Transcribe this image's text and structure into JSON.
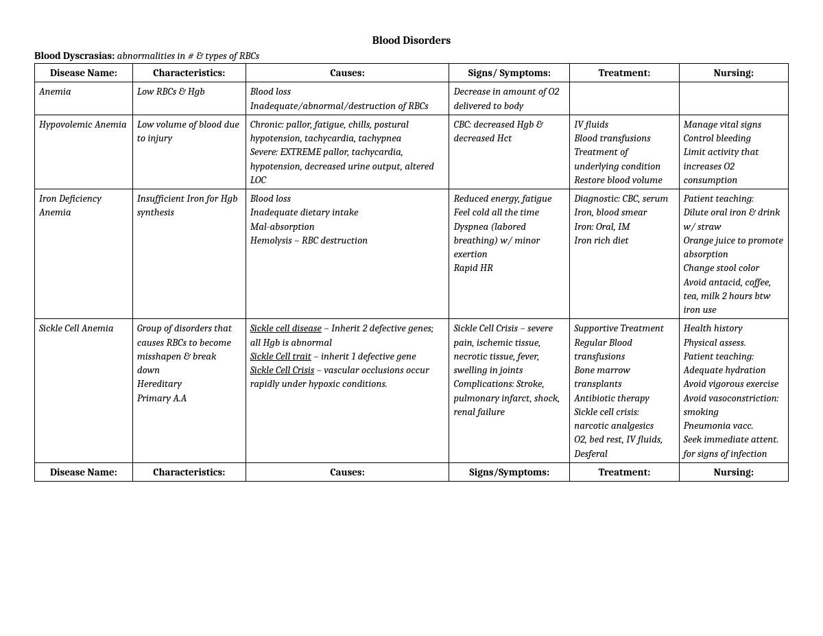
{
  "title": "Blood Disorders",
  "subheading_bold": "Blood Dyscrasias:",
  "subheading_ital": " abnormalities in # & types of RBCs",
  "columns": [
    "Disease Name:",
    "Characteristics:",
    "Causes:",
    "Signs/ Symptoms:",
    "Treatment:",
    "Nursing:"
  ],
  "footer_columns": [
    "Disease Name:",
    "Characteristics:",
    "Causes:",
    "Signs/Symptoms:",
    "Treatment:",
    "Nursing:"
  ],
  "rows": {
    "anemia": {
      "disease": "Anemia",
      "char": "Low RBCs & Hgb",
      "causes_l1": "Blood loss",
      "causes_l2": "Inadequate/abnormal/destruction of RBCs",
      "signs": "Decrease in amount of O2 delivered to body",
      "treat": "",
      "nursing": ""
    },
    "hypo": {
      "disease": "Hypovolemic Anemia",
      "char": "Low volume of blood due to injury",
      "causes_l1": "Chronic: pallor, fatigue, chills, postural hypotension, tachycardia, tachypnea",
      "causes_l2": "Severe: EXTREME pallor, tachycardia, hypotension, decreased urine output, altered LOC",
      "signs": "CBC: decreased Hgb & decreased Hct",
      "treat_l1": "IV fluids",
      "treat_l2": "Blood transfusions",
      "treat_l3": "Treatment of underlying condition",
      "treat_l4": "Restore blood volume",
      "nursing_l1": "Manage vital signs",
      "nursing_l2": "Control bleeding",
      "nursing_l3": "Limit activity that increases O2 consumption"
    },
    "iron": {
      "disease": "Iron Deficiency Anemia",
      "char": "Insufficient Iron for Hgb synthesis",
      "causes_l1": "Blood loss",
      "causes_l2": "Inadequate dietary intake",
      "causes_l3": "Mal-absorption",
      "causes_l4": "Hemolysis – RBC destruction",
      "signs_l1": "Reduced energy, fatigue",
      "signs_l2": "Feel cold all the time",
      "signs_l3": "Dyspnea (labored breathing) w/ minor exertion",
      "signs_l4": "Rapid HR",
      "treat_l1": "Diagnostic: CBC, serum Iron, blood smear",
      "treat_l2": "Iron: Oral, IM",
      "treat_l3": "Iron rich diet",
      "nursing_l1": "Patient teaching:",
      "nursing_l2": "Dilute oral iron & drink w/ straw",
      "nursing_l3": "Orange juice to promote absorption",
      "nursing_l4": "Change stool color",
      "nursing_l5": "Avoid antacid, coffee, tea, milk 2 hours btw iron use"
    },
    "sickle": {
      "disease": "Sickle Cell Anemia",
      "char_l1": "Group of disorders that causes RBCs to become misshapen & break down",
      "char_l2": "Hereditary",
      "char_l3": "Primary A.A",
      "causes_u1": "Sickle cell disease",
      "causes_t1": " – Inherit 2 defective genes; all Hgb is abnormal",
      "causes_u2": "Sickle Cell trait",
      "causes_t2": " – inherit 1 defective gene",
      "causes_u3": "Sickle Cell Crisis",
      "causes_t3": " – vascular occlusions occur rapidly under hypoxic conditions.",
      "signs_l1": "Sickle Cell Crisis – severe pain, ischemic tissue, necrotic tissue, fever, swelling in joints",
      "signs_l2": "Complications: Stroke, pulmonary infarct, shock, renal failure",
      "treat_l1": "Supportive Treatment",
      "treat_l2": "Regular Blood transfusions",
      "treat_l3": "Bone marrow transplants",
      "treat_l4": "Antibiotic therapy",
      "treat_l5": "Sickle cell crisis: narcotic analgesics",
      "treat_l6": "O2, bed rest, IV fluids, Desferal",
      "nursing_l1": "Health history",
      "nursing_l2": "Physical assess.",
      "nursing_l3": "Patient teaching:",
      "nursing_l4": "Adequate hydration",
      "nursing_l5": "Avoid vigorous exercise",
      "nursing_l6": "Avoid vasoconstriction: smoking",
      "nursing_l7": "Pneumonia vacc.",
      "nursing_l8": "Seek immediate attent. for signs of infection"
    }
  },
  "style": {
    "type": "table",
    "background_color": "#ffffff",
    "text_color": "#000000",
    "border_color": "#000000",
    "font_family": "Cambria/Georgia serif",
    "header_font_weight": "bold",
    "body_font_style": "italic",
    "title_fontsize": 16,
    "body_fontsize": 15,
    "column_widths_pct": [
      13,
      15,
      27,
      16,
      14.5,
      14.5
    ],
    "column_align": [
      "left",
      "left",
      "left",
      "left",
      "left",
      "left"
    ],
    "header_align": "center"
  }
}
